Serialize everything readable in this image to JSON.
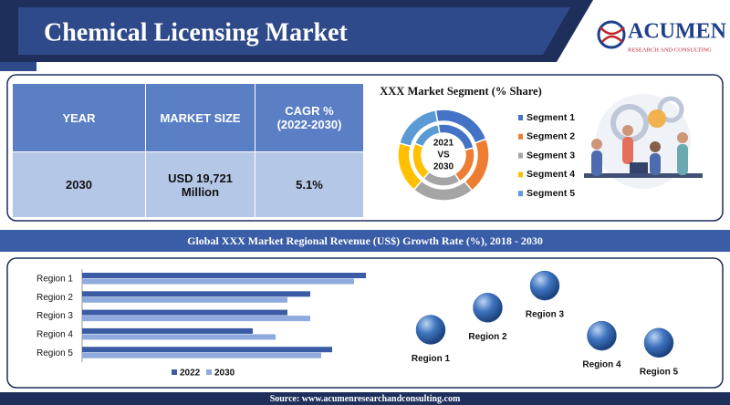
{
  "header": {
    "title": "Chemical Licensing Market"
  },
  "logo": {
    "name": "ACUMEN",
    "tagline": "RESEARCH AND CONSULTING"
  },
  "table": {
    "headers": [
      "YEAR",
      "MARKET SIZE",
      "CAGR %\n(2022-2030)"
    ],
    "rows": [
      [
        "2030",
        "USD 19,721\nMillion",
        "5.1%"
      ]
    ]
  },
  "chart_data": [
    {
      "type": "pie",
      "title": "XXX Market Segment (% Share)",
      "center_label": [
        "2021",
        "VS",
        "2030"
      ],
      "categories": [
        "Segment 1",
        "Segment 2",
        "Segment 3",
        "Segment 4",
        "Segment 5"
      ],
      "colors": [
        "#4472c4",
        "#ed7d31",
        "#a5a5a5",
        "#ffc000",
        "#5b9bd5"
      ],
      "rings": [
        {
          "values": [
            24,
            20,
            20,
            20,
            16
          ]
        },
        {
          "values": [
            22,
            20,
            22,
            18,
            18
          ]
        }
      ]
    },
    {
      "type": "bar",
      "orientation": "horizontal",
      "title": "Global XXX Market Regional Revenue (US$) Growth Rate (%), 2018 - 2030",
      "categories": [
        "Region 1",
        "Region 2",
        "Region 3",
        "Region 4",
        "Region 5"
      ],
      "series": [
        {
          "name": "2022",
          "color": "#3b5ba5",
          "values": [
            31.1,
            25,
            22.5,
            18.7,
            27.4
          ]
        },
        {
          "name": "2030",
          "color": "#8faadc",
          "values": [
            29.8,
            22.5,
            25,
            21.2,
            26.2
          ]
        }
      ],
      "xlim": [
        0,
        35
      ]
    },
    {
      "type": "scatter",
      "categories": [
        "Region 1",
        "Region 2",
        "Region 3",
        "Region 4",
        "Region 5"
      ],
      "values": [
        35,
        57,
        79,
        29,
        22
      ],
      "color": "#2f5fa8",
      "ylim": [
        0,
        100
      ]
    }
  ],
  "footer": {
    "source": "Source: www.acumenresearchandconsulting.com"
  }
}
